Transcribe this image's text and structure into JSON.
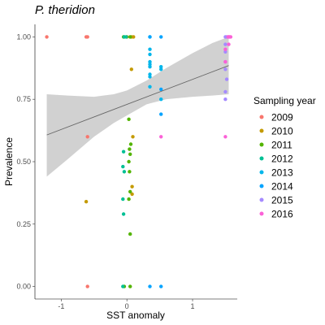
{
  "chart_data": {
    "type": "scatter",
    "title": "P. theridion",
    "xlabel": "SST anomaly",
    "ylabel": "Prevalence",
    "xlim": [
      -1.4,
      1.68
    ],
    "ylim": [
      -0.05,
      1.05
    ],
    "x_ticks": [
      {
        "value": -1,
        "label": "-1"
      },
      {
        "value": 0,
        "label": "0"
      },
      {
        "value": 1,
        "label": "1"
      }
    ],
    "y_ticks": [
      {
        "value": 0,
        "label": "0.00"
      },
      {
        "value": 0.25,
        "label": "0.25"
      },
      {
        "value": 0.5,
        "label": "0.50"
      },
      {
        "value": 0.75,
        "label": "0.75"
      },
      {
        "value": 1,
        "label": "1.00"
      }
    ],
    "grid": false,
    "legend": {
      "title": "Sampling year",
      "position": "right"
    },
    "series": [
      {
        "name": "2009",
        "color": "#F8766D",
        "points": [
          [
            -1.22,
            1.0
          ],
          [
            -0.62,
            1.0
          ],
          [
            -0.6,
            1.0
          ],
          [
            -0.6,
            0.6
          ],
          [
            -0.6,
            0.0
          ]
        ]
      },
      {
        "name": "2010",
        "color": "#C49A00",
        "points": [
          [
            -0.62,
            0.34
          ],
          [
            0.0,
            1.0
          ],
          [
            0.07,
            1.0
          ],
          [
            0.1,
            1.0
          ],
          [
            0.07,
            0.87
          ],
          [
            0.09,
            0.6
          ],
          [
            0.08,
            0.4
          ],
          [
            0.08,
            0.37
          ]
        ]
      },
      {
        "name": "2011",
        "color": "#53B400",
        "points": [
          [
            -0.05,
            1.0
          ],
          [
            0.05,
            1.0
          ],
          [
            0.03,
            0.67
          ],
          [
            0.06,
            0.57
          ],
          [
            0.04,
            0.55
          ],
          [
            0.05,
            0.53
          ],
          [
            0.03,
            0.5
          ],
          [
            0.04,
            0.46
          ],
          [
            0.05,
            0.38
          ],
          [
            0.03,
            0.35
          ],
          [
            0.05,
            0.21
          ],
          [
            -0.04,
            0.0
          ],
          [
            0.05,
            0.0
          ]
        ]
      },
      {
        "name": "2012",
        "color": "#00C094",
        "points": [
          [
            -0.04,
            1.0
          ],
          [
            -0.01,
            1.0
          ],
          [
            -0.05,
            0.54
          ],
          [
            -0.06,
            0.48
          ],
          [
            -0.04,
            0.46
          ],
          [
            -0.06,
            0.35
          ],
          [
            -0.05,
            0.29
          ],
          [
            -0.06,
            0.0
          ]
        ]
      },
      {
        "name": "2013",
        "color": "#00B6EB",
        "points": [
          [
            0.35,
            1.0
          ],
          [
            0.35,
            0.95
          ],
          [
            0.35,
            0.93
          ],
          [
            0.35,
            0.9
          ],
          [
            0.35,
            0.89
          ],
          [
            0.35,
            0.88
          ],
          [
            0.35,
            0.85
          ],
          [
            0.35,
            0.84
          ],
          [
            0.35,
            0.8
          ],
          [
            0.52,
            0.88
          ],
          [
            0.52,
            0.87
          ],
          [
            0.52,
            0.75
          ]
        ]
      },
      {
        "name": "2014",
        "color": "#06A4FF",
        "points": [
          [
            0.35,
            1.0
          ],
          [
            0.52,
            1.0
          ],
          [
            0.52,
            0.79
          ],
          [
            0.52,
            0.69
          ],
          [
            0.35,
            0.0
          ],
          [
            0.52,
            0.0
          ]
        ]
      },
      {
        "name": "2015",
        "color": "#A58AFF",
        "points": [
          [
            1.5,
            1.0
          ],
          [
            1.52,
            1.0
          ],
          [
            1.5,
            0.97
          ],
          [
            1.5,
            0.94
          ],
          [
            1.5,
            0.9
          ],
          [
            1.5,
            0.87
          ],
          [
            1.52,
            0.83
          ],
          [
            1.5,
            0.78
          ],
          [
            1.5,
            0.75
          ]
        ]
      },
      {
        "name": "2016",
        "color": "#FB61D7",
        "points": [
          [
            1.54,
            1.0
          ],
          [
            1.55,
            1.0
          ],
          [
            1.56,
            1.0
          ],
          [
            1.58,
            1.0
          ],
          [
            1.55,
            0.97
          ],
          [
            1.5,
            0.95
          ],
          [
            1.5,
            0.9
          ],
          [
            0.52,
            0.6
          ],
          [
            1.5,
            0.6
          ]
        ]
      }
    ],
    "trend": {
      "color": "#666666",
      "line": [
        [
          -1.22,
          0.607
        ],
        [
          1.55,
          0.885
        ]
      ],
      "band_color": "#cccccc",
      "band_upper": [
        [
          -1.22,
          0.77
        ],
        [
          -0.9,
          0.765
        ],
        [
          -0.5,
          0.76
        ],
        [
          -0.2,
          0.77
        ],
        [
          0.0,
          0.785
        ],
        [
          0.3,
          0.825
        ],
        [
          0.6,
          0.875
        ],
        [
          1.0,
          0.935
        ],
        [
          1.3,
          0.975
        ],
        [
          1.55,
          1.0
        ]
      ],
      "band_lower": [
        [
          -1.22,
          0.44
        ],
        [
          -0.9,
          0.51
        ],
        [
          -0.5,
          0.6
        ],
        [
          -0.2,
          0.655
        ],
        [
          0.0,
          0.685
        ],
        [
          0.3,
          0.73
        ],
        [
          0.6,
          0.75
        ],
        [
          1.0,
          0.76
        ],
        [
          1.3,
          0.765
        ],
        [
          1.55,
          0.77
        ]
      ]
    }
  }
}
